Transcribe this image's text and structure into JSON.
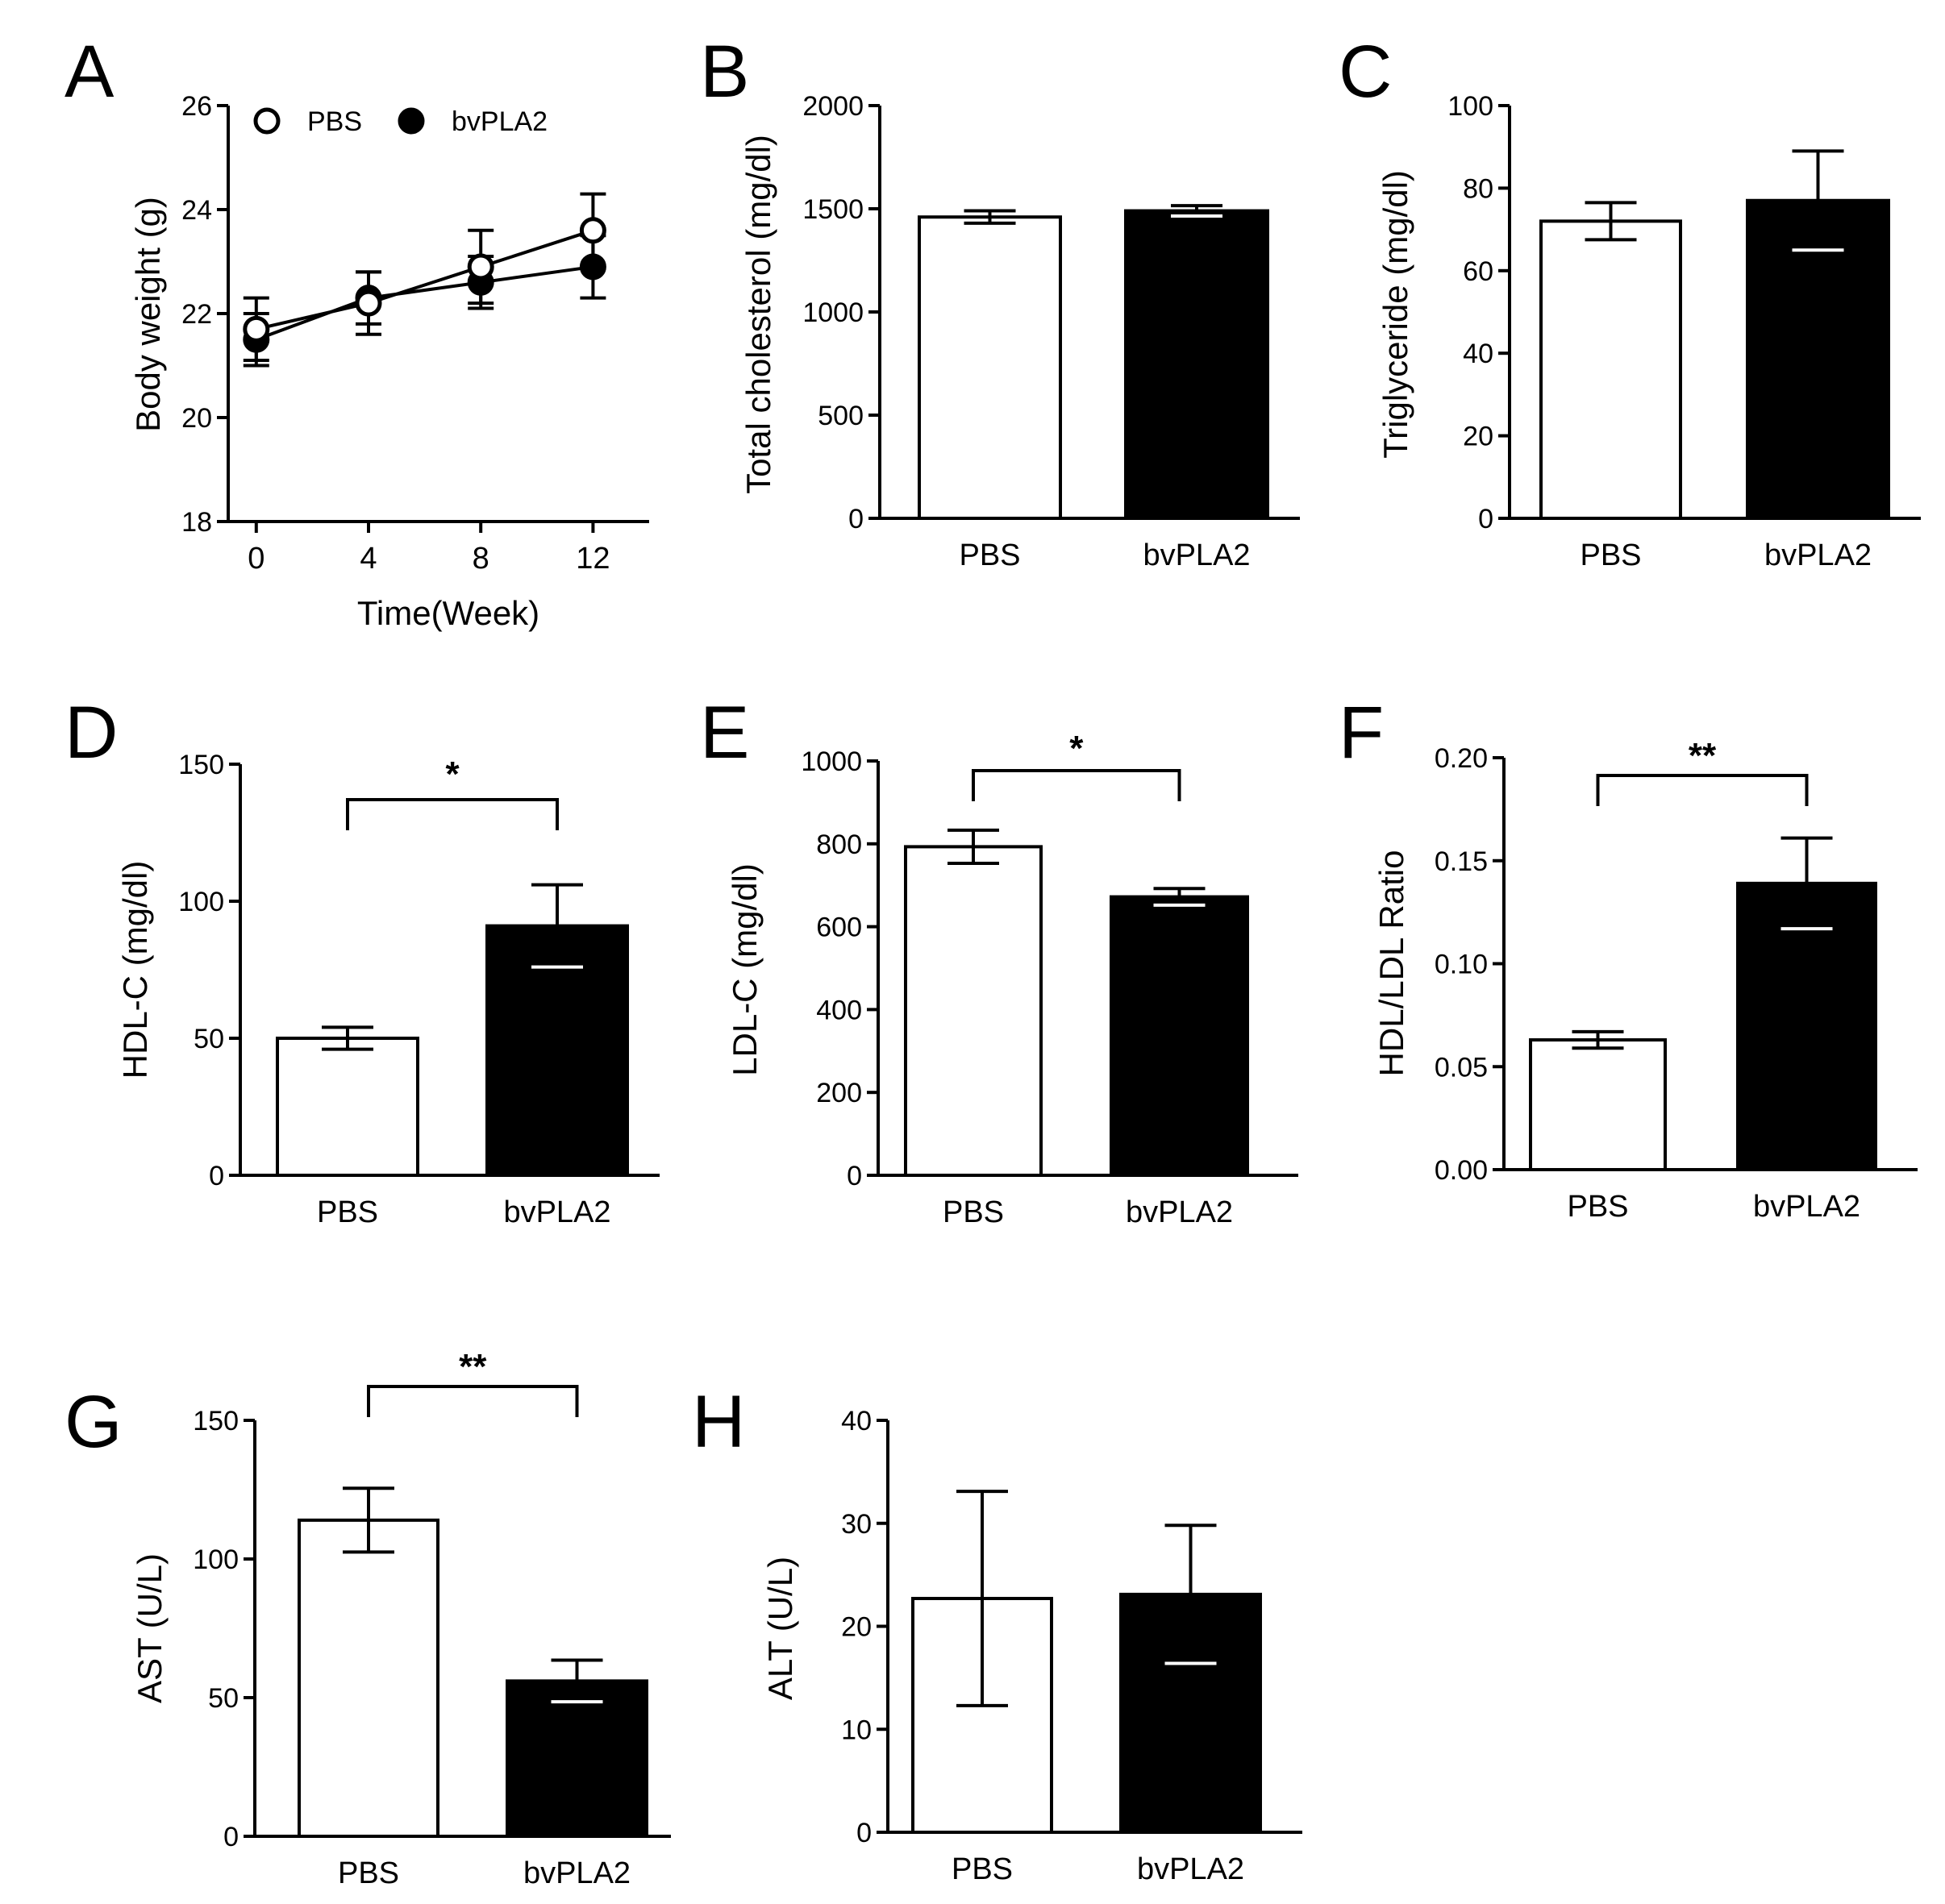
{
  "chart_data": [
    {
      "panel": "A",
      "type": "line",
      "ylabel": "Body weight (g)",
      "xlabel": "Time(Week)",
      "x": [
        0,
        4,
        8,
        12
      ],
      "xticks": [
        "0",
        "4",
        "8",
        "12"
      ],
      "yticks": [
        "18",
        "20",
        "22",
        "24",
        "26"
      ],
      "ylim": [
        18,
        26
      ],
      "xlim": [
        -1,
        14
      ],
      "series": [
        {
          "name": "PBS",
          "marker": "open",
          "values": [
            21.7,
            22.2,
            22.9,
            23.6
          ],
          "errors": [
            0.6,
            0.6,
            0.7,
            0.7
          ]
        },
        {
          "name": "bvPLA2",
          "marker": "filled",
          "values": [
            21.5,
            22.3,
            22.6,
            22.9
          ],
          "errors": [
            0.5,
            0.5,
            0.5,
            0.6
          ]
        }
      ],
      "legend": "top-left"
    },
    {
      "panel": "B",
      "type": "bar",
      "ylabel": "Total cholesterol (mg/dl)",
      "categories": [
        "PBS",
        "bvPLA2"
      ],
      "values": [
        1460,
        1490
      ],
      "errors": [
        30,
        25
      ],
      "ylim": [
        0,
        2000
      ],
      "yticks": [
        "0",
        "500",
        "1000",
        "1500",
        "2000"
      ],
      "significance": null
    },
    {
      "panel": "C",
      "type": "bar",
      "ylabel": "Triglyceride (mg/dl)",
      "categories": [
        "PBS",
        "bvPLA2"
      ],
      "values": [
        72,
        77
      ],
      "errors": [
        4.5,
        12
      ],
      "ylim": [
        0,
        100
      ],
      "yticks": [
        "0",
        "20",
        "40",
        "60",
        "80",
        "100"
      ],
      "significance": null
    },
    {
      "panel": "D",
      "type": "bar",
      "ylabel": "HDL-C (mg/dl)",
      "categories": [
        "PBS",
        "bvPLA2"
      ],
      "values": [
        50,
        91
      ],
      "errors": [
        4,
        15
      ],
      "ylim": [
        0,
        150
      ],
      "yticks": [
        "0",
        "50",
        "100",
        "150"
      ],
      "significance": "*"
    },
    {
      "panel": "E",
      "type": "bar",
      "ylabel": "LDL-C (mg/dl)",
      "categories": [
        "PBS",
        "bvPLA2"
      ],
      "values": [
        793,
        672
      ],
      "errors": [
        40,
        20
      ],
      "ylim": [
        0,
        1000
      ],
      "yticks": [
        "0",
        "200",
        "400",
        "600",
        "800",
        "1000"
      ],
      "significance": "*"
    },
    {
      "panel": "F",
      "type": "bar",
      "ylabel": "HDL/LDL Ratio",
      "categories": [
        "PBS",
        "bvPLA2"
      ],
      "values": [
        0.063,
        0.139
      ],
      "errors": [
        0.004,
        0.022
      ],
      "ylim": [
        0,
        0.2
      ],
      "yticks": [
        "0.00",
        "0.05",
        "0.10",
        "0.15",
        "0.20"
      ],
      "significance": "**"
    },
    {
      "panel": "G",
      "type": "bar",
      "ylabel": "AST (U/L)",
      "categories": [
        "PBS",
        "bvPLA2"
      ],
      "values": [
        114,
        56
      ],
      "errors": [
        11.5,
        7.5
      ],
      "ylim": [
        0,
        150
      ],
      "yticks": [
        "0",
        "50",
        "100",
        "150"
      ],
      "significance": "**"
    },
    {
      "panel": "H",
      "type": "bar",
      "ylabel": "ALT (U/L)",
      "categories": [
        "PBS",
        "bvPLA2"
      ],
      "values": [
        22.7,
        23.1
      ],
      "errors": [
        10.4,
        6.7
      ],
      "ylim": [
        0,
        40
      ],
      "yticks": [
        "0",
        "10",
        "20",
        "30",
        "40"
      ],
      "significance": null
    }
  ],
  "colors": {
    "pbs_fill": "#ffffff",
    "bvpla2_fill": "#000000",
    "stroke": "#000000"
  }
}
